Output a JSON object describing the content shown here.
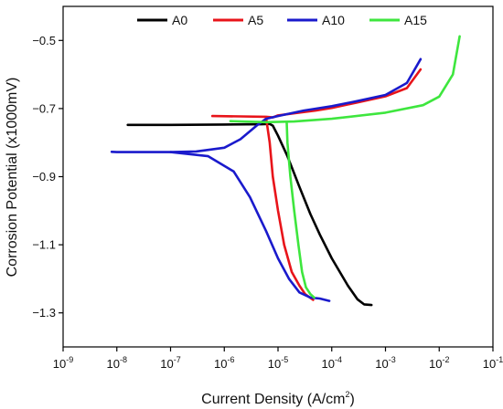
{
  "chart_data": {
    "type": "line",
    "xlabel": "Current Density (A/cm",
    "xlabel_sup": "2",
    "xlabel_close": ")",
    "ylabel": "Corrosion Potential (x1000mV)",
    "x_scale": "log",
    "xlim": [
      1e-09,
      0.1
    ],
    "ylim": [
      -1.4,
      -0.4
    ],
    "x_ticks": [
      {
        "base": "10",
        "exp": "-9",
        "value": 1e-09
      },
      {
        "base": "10",
        "exp": "-8",
        "value": 1e-08
      },
      {
        "base": "10",
        "exp": "-7",
        "value": 1e-07
      },
      {
        "base": "10",
        "exp": "-6",
        "value": 1e-06
      },
      {
        "base": "10",
        "exp": "-5",
        "value": 1e-05
      },
      {
        "base": "10",
        "exp": "-4",
        "value": 0.0001
      },
      {
        "base": "10",
        "exp": "-3",
        "value": 0.001
      },
      {
        "base": "10",
        "exp": "-2",
        "value": 0.01
      },
      {
        "base": "10",
        "exp": "-1",
        "value": 0.1
      }
    ],
    "y_ticks": [
      {
        "label": "-0.5",
        "value": -0.5
      },
      {
        "label": "-0.7",
        "value": -0.7
      },
      {
        "label": "-0.9",
        "value": -0.9
      },
      {
        "label": "-1.1",
        "value": -1.1
      },
      {
        "label": "-1.3",
        "value": -1.3
      }
    ],
    "grid": false,
    "legend_position": "top",
    "series": [
      {
        "name": "A0",
        "color": "#000000",
        "points": [
          [
            1.6e-08,
            -0.748
          ],
          [
            1e-07,
            -0.748
          ],
          [
            1e-06,
            -0.747
          ],
          [
            5e-06,
            -0.746
          ],
          [
            7e-06,
            -0.745
          ],
          [
            8e-06,
            -0.75
          ],
          [
            1e-05,
            -0.78
          ],
          [
            1.5e-05,
            -0.84
          ],
          [
            2.5e-05,
            -0.93
          ],
          [
            4e-05,
            -1.01
          ],
          [
            6e-05,
            -1.07
          ],
          [
            0.0001,
            -1.14
          ],
          [
            0.0002,
            -1.22
          ],
          [
            0.0003,
            -1.26
          ],
          [
            0.0004,
            -1.275
          ],
          [
            0.00055,
            -1.277
          ]
        ]
      },
      {
        "name": "A5",
        "color": "#e8141a",
        "points": [
          [
            6e-07,
            -0.722
          ],
          [
            2e-06,
            -0.723
          ],
          [
            6e-06,
            -0.724
          ],
          [
            8e-06,
            -0.726
          ],
          [
            1e-05,
            -0.72
          ],
          [
            2e-05,
            -0.714
          ],
          [
            5e-05,
            -0.706
          ],
          [
            0.0001,
            -0.698
          ],
          [
            0.0003,
            -0.682
          ],
          [
            0.001,
            -0.664
          ],
          [
            0.0025,
            -0.64
          ],
          [
            0.0045,
            -0.585
          ]
        ]
      },
      {
        "name": "A5",
        "color": "#e8141a",
        "points": [
          [
            6e-06,
            -0.728
          ],
          [
            7e-06,
            -0.8
          ],
          [
            8e-06,
            -0.9
          ],
          [
            1e-05,
            -1.0
          ],
          [
            1.3e-05,
            -1.1
          ],
          [
            1.8e-05,
            -1.18
          ],
          [
            2.5e-05,
            -1.22
          ],
          [
            3.2e-05,
            -1.245
          ],
          [
            4.5e-05,
            -1.262
          ]
        ]
      },
      {
        "name": "A10",
        "color": "#1a1acc",
        "points": [
          [
            8e-09,
            -0.827
          ],
          [
            1e-08,
            -0.828
          ],
          [
            1e-07,
            -0.828
          ],
          [
            3e-07,
            -0.826
          ],
          [
            1e-06,
            -0.815
          ],
          [
            2e-06,
            -0.79
          ],
          [
            4e-06,
            -0.75
          ],
          [
            6e-06,
            -0.73
          ],
          [
            1e-05,
            -0.722
          ],
          [
            3e-05,
            -0.706
          ],
          [
            0.0001,
            -0.693
          ],
          [
            0.0003,
            -0.678
          ],
          [
            0.001,
            -0.66
          ],
          [
            0.0025,
            -0.625
          ],
          [
            0.0045,
            -0.555
          ]
        ]
      },
      {
        "name": "A10",
        "color": "#1a1acc",
        "points": [
          [
            1e-07,
            -0.828
          ],
          [
            5e-07,
            -0.84
          ],
          [
            1.5e-06,
            -0.885
          ],
          [
            3e-06,
            -0.96
          ],
          [
            6e-06,
            -1.06
          ],
          [
            1e-05,
            -1.14
          ],
          [
            1.6e-05,
            -1.2
          ],
          [
            2.5e-05,
            -1.24
          ],
          [
            4e-05,
            -1.255
          ],
          [
            6e-05,
            -1.258
          ],
          [
            9e-05,
            -1.265
          ]
        ]
      },
      {
        "name": "A15",
        "color": "#3ee63e",
        "points": [
          [
            1.3e-06,
            -0.737
          ],
          [
            6e-06,
            -0.74
          ],
          [
            2e-05,
            -0.738
          ],
          [
            0.0001,
            -0.73
          ],
          [
            0.001,
            -0.712
          ],
          [
            0.005,
            -0.69
          ],
          [
            0.01,
            -0.665
          ],
          [
            0.018,
            -0.6
          ],
          [
            0.024,
            -0.488
          ]
        ]
      },
      {
        "name": "A15",
        "color": "#3ee63e",
        "points": [
          [
            1.45e-05,
            -0.74
          ],
          [
            1.5e-05,
            -0.8
          ],
          [
            1.7e-05,
            -0.9
          ],
          [
            2e-05,
            -1.0
          ],
          [
            2.4e-05,
            -1.1
          ],
          [
            2.8e-05,
            -1.18
          ],
          [
            3.3e-05,
            -1.225
          ],
          [
            4e-05,
            -1.245
          ],
          [
            4.7e-05,
            -1.255
          ]
        ]
      }
    ],
    "legend": [
      {
        "name": "A0",
        "color": "#000000"
      },
      {
        "name": "A5",
        "color": "#e8141a"
      },
      {
        "name": "A10",
        "color": "#1a1acc"
      },
      {
        "name": "A15",
        "color": "#3ee63e"
      }
    ]
  }
}
